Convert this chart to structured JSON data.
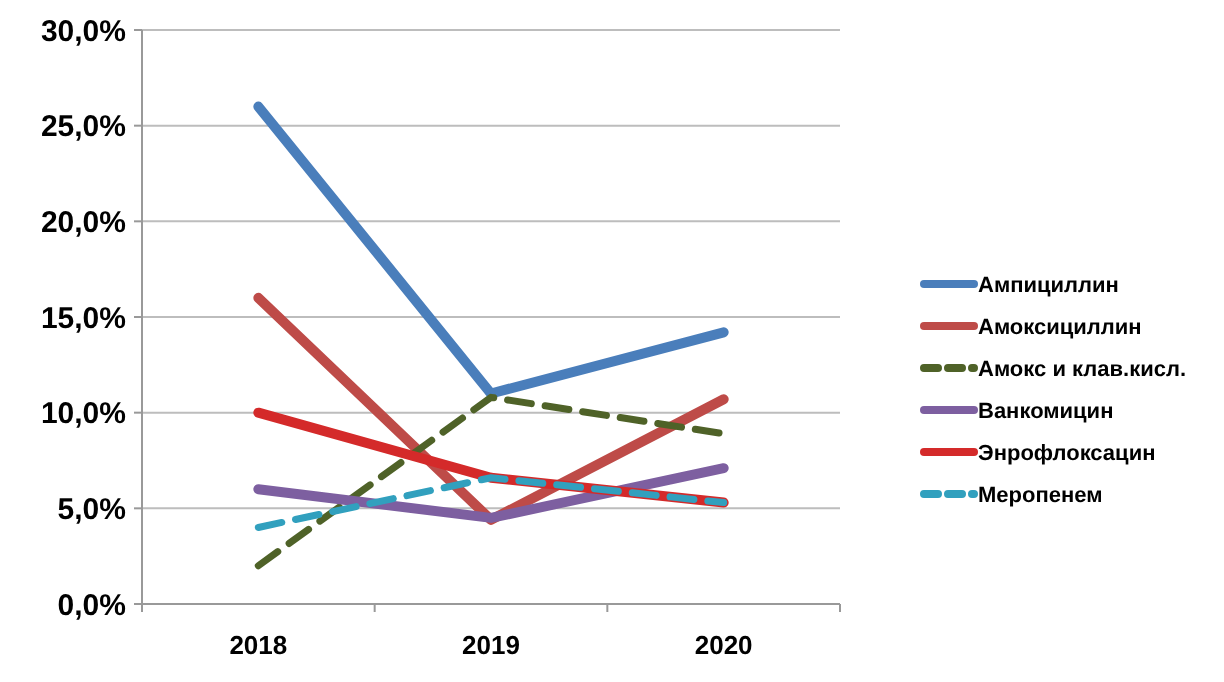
{
  "chart_data": {
    "type": "line",
    "categories": [
      "2018",
      "2019",
      "2020"
    ],
    "ylim": [
      0,
      30
    ],
    "yticks": [
      {
        "value": 0,
        "label": "0,0%"
      },
      {
        "value": 5,
        "label": "5,0%"
      },
      {
        "value": 10,
        "label": "10,0%"
      },
      {
        "value": 15,
        "label": "15,0%"
      },
      {
        "value": 20,
        "label": "20,0%"
      },
      {
        "value": 25,
        "label": "25,0%"
      },
      {
        "value": 30,
        "label": "30,0%"
      }
    ],
    "grid": "y",
    "legend": "right",
    "marker": "none",
    "series": [
      {
        "name": "Ампициллин",
        "color": "#4a7ebb",
        "values": [
          26,
          11,
          14.2
        ],
        "line_style": "solid"
      },
      {
        "name": "Амоксициллин",
        "color": "#be4b48",
        "values": [
          16,
          4.4,
          10.7
        ],
        "line_style": "solid"
      },
      {
        "name": "Амокс и клав.кисл.",
        "color": "#4f6228",
        "values": [
          2,
          10.8,
          8.9
        ],
        "line_style": "dashed"
      },
      {
        "name": "Ванкомицин",
        "color": "#7d5fa0",
        "values": [
          6,
          4.5,
          7.1
        ],
        "line_style": "solid"
      },
      {
        "name": "Энрофлоксацин",
        "color": "#d42a2a",
        "values": [
          10,
          6.6,
          5.3
        ],
        "line_style": "solid"
      },
      {
        "name": "Меропенем",
        "color": "#31a0be",
        "values": [
          4,
          6.6,
          5.3
        ],
        "line_style": "dashed"
      }
    ]
  }
}
